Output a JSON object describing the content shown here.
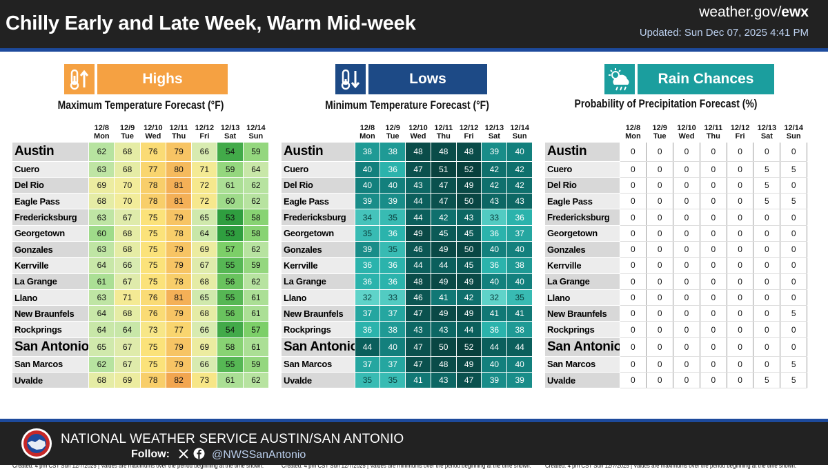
{
  "header": {
    "title": "Chilly Early and Late Week, Warm Mid-week",
    "site_prefix": "weather.gov/",
    "site_office": "ewx",
    "updated": "Updated: Sun Dec 07, 2025 4:41 PM"
  },
  "days": [
    {
      "date": "12/8",
      "dow": "Mon"
    },
    {
      "date": "12/9",
      "dow": "Tue"
    },
    {
      "date": "12/10",
      "dow": "Wed"
    },
    {
      "date": "12/11",
      "dow": "Thu"
    },
    {
      "date": "12/12",
      "dow": "Fri"
    },
    {
      "date": "12/13",
      "dow": "Sat"
    },
    {
      "date": "12/14",
      "dow": "Sun"
    }
  ],
  "cities": [
    "Austin",
    "Cuero",
    "Del Rio",
    "Eagle Pass",
    "Fredericksburg",
    "Georgetown",
    "Gonzales",
    "Kerrville",
    "La Grange",
    "Llano",
    "New Braunfels",
    "Rockprings",
    "San Antonio",
    "San Marcos",
    "Uvalde"
  ],
  "highs": {
    "label": "Highs",
    "icon": "thermometer-up-icon",
    "color": "#f5a142",
    "title": "Maximum Temperature Forecast (°F)",
    "values": [
      [
        62,
        68,
        76,
        79,
        66,
        54,
        59
      ],
      [
        63,
        68,
        77,
        80,
        71,
        59,
        64
      ],
      [
        69,
        70,
        78,
        81,
        72,
        61,
        62
      ],
      [
        68,
        70,
        78,
        81,
        72,
        60,
        62
      ],
      [
        63,
        67,
        75,
        79,
        65,
        53,
        58
      ],
      [
        60,
        68,
        75,
        78,
        64,
        53,
        58
      ],
      [
        63,
        68,
        75,
        79,
        69,
        57,
        62
      ],
      [
        64,
        66,
        75,
        79,
        67,
        55,
        59
      ],
      [
        61,
        67,
        75,
        78,
        68,
        56,
        62
      ],
      [
        63,
        71,
        76,
        81,
        65,
        55,
        61
      ],
      [
        64,
        68,
        76,
        79,
        68,
        56,
        61
      ],
      [
        64,
        64,
        73,
        77,
        66,
        54,
        57
      ],
      [
        65,
        67,
        75,
        79,
        69,
        58,
        61
      ],
      [
        62,
        67,
        75,
        79,
        66,
        55,
        59
      ],
      [
        68,
        69,
        78,
        82,
        73,
        61,
        62
      ]
    ],
    "note": "Created: 4 pm CST Sun 12/7/2025  |  Values are maximums over the period beginning at the time shown."
  },
  "lows": {
    "label": "Lows",
    "icon": "thermometer-down-icon",
    "color": "#1d4a86",
    "title": "Minimum Temperature Forecast (°F)",
    "values": [
      [
        38,
        38,
        48,
        48,
        48,
        39,
        40
      ],
      [
        40,
        36,
        47,
        51,
        52,
        42,
        42
      ],
      [
        40,
        40,
        43,
        47,
        49,
        42,
        42
      ],
      [
        39,
        39,
        44,
        47,
        50,
        43,
        43
      ],
      [
        34,
        35,
        44,
        42,
        43,
        33,
        36
      ],
      [
        35,
        36,
        49,
        45,
        45,
        36,
        37
      ],
      [
        39,
        35,
        46,
        49,
        50,
        40,
        40
      ],
      [
        36,
        36,
        44,
        44,
        45,
        36,
        38
      ],
      [
        36,
        36,
        48,
        49,
        49,
        40,
        40
      ],
      [
        32,
        33,
        46,
        41,
        42,
        32,
        35
      ],
      [
        37,
        37,
        47,
        49,
        49,
        41,
        41
      ],
      [
        36,
        38,
        43,
        43,
        44,
        36,
        38
      ],
      [
        44,
        40,
        47,
        50,
        52,
        44,
        44
      ],
      [
        37,
        37,
        47,
        48,
        49,
        40,
        40
      ],
      [
        35,
        35,
        41,
        43,
        47,
        39,
        39
      ]
    ],
    "note": "Created: 4 pm CST Sun 12/7/2025  |  Values are minimums over the period beginning at the time shown."
  },
  "rain": {
    "label": "Rain Chances",
    "icon": "cloud-rain-sun-icon",
    "color": "#1b9e9e",
    "title": "Probability of Precipitation Forecast (%)",
    "values": [
      [
        0,
        0,
        0,
        0,
        0,
        0,
        0
      ],
      [
        0,
        0,
        0,
        0,
        0,
        5,
        5
      ],
      [
        0,
        0,
        0,
        0,
        0,
        5,
        0
      ],
      [
        0,
        0,
        0,
        0,
        0,
        5,
        5
      ],
      [
        0,
        0,
        0,
        0,
        0,
        0,
        0
      ],
      [
        0,
        0,
        0,
        0,
        0,
        0,
        0
      ],
      [
        0,
        0,
        0,
        0,
        0,
        0,
        0
      ],
      [
        0,
        0,
        0,
        0,
        0,
        0,
        0
      ],
      [
        0,
        0,
        0,
        0,
        0,
        0,
        0
      ],
      [
        0,
        0,
        0,
        0,
        0,
        0,
        0
      ],
      [
        0,
        0,
        0,
        0,
        0,
        0,
        5
      ],
      [
        0,
        0,
        0,
        0,
        0,
        0,
        0
      ],
      [
        0,
        0,
        0,
        0,
        0,
        0,
        0
      ],
      [
        0,
        0,
        0,
        0,
        0,
        0,
        5
      ],
      [
        0,
        0,
        0,
        0,
        0,
        5,
        5
      ]
    ],
    "note": "Created: 4 pm CST Sun 12/7/2025  |  Values are maximums over the period beginning at the time shown."
  },
  "big_cities": [
    "Austin",
    "San Antonio"
  ],
  "footer": {
    "org": "NATIONAL WEATHER SERVICE AUSTIN/SAN ANTONIO",
    "follow": "Follow:",
    "x_icon": "x-logo-icon",
    "fb_icon": "facebook-icon",
    "handle": "@NWSSanAntonio",
    "logo_icon": "nws-logo-icon"
  }
}
